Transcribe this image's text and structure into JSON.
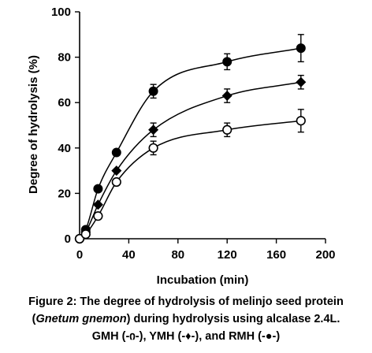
{
  "chart_data": {
    "type": "line",
    "xlabel": "Incubation (min)",
    "ylabel": "Degree of hydrolysis (%)",
    "xlim": [
      0,
      200
    ],
    "ylim": [
      0,
      100
    ],
    "xticks": [
      "0",
      "40",
      "80",
      "120",
      "160",
      "200"
    ],
    "yticks": [
      "0",
      "20",
      "40",
      "60",
      "80",
      "100"
    ],
    "grid": false,
    "legend": "none",
    "series": [
      {
        "name": "RMH",
        "marker": "filled-circle",
        "x": [
          0,
          5,
          15,
          30,
          60,
          120,
          180
        ],
        "y": [
          0,
          4,
          22,
          38,
          65,
          78,
          84
        ],
        "err": [
          0,
          0,
          0,
          0,
          3,
          3.5,
          6
        ]
      },
      {
        "name": "YMH",
        "marker": "diamond",
        "x": [
          0,
          5,
          15,
          30,
          60,
          120,
          180
        ],
        "y": [
          0,
          3,
          15,
          30,
          48,
          63,
          69
        ],
        "err": [
          0,
          0,
          0,
          0,
          3,
          3,
          3
        ]
      },
      {
        "name": "GMH",
        "marker": "open-circle",
        "x": [
          0,
          5,
          15,
          30,
          60,
          120,
          180
        ],
        "y": [
          0,
          2,
          10,
          25,
          40,
          48,
          52
        ],
        "err": [
          0,
          0,
          0,
          0,
          3,
          3,
          5
        ]
      }
    ]
  },
  "caption": {
    "line1": "Figure 2: The degree of hydrolysis of melinjo seed protein",
    "line2_open": "(",
    "line2_italic": "Gnetum gnemon",
    "line2_rest": ") during hydrolysis using alcalase 2.4L.",
    "line3": "GMH (-ი-), YMH (-♦-), and RMH (-●-)"
  }
}
